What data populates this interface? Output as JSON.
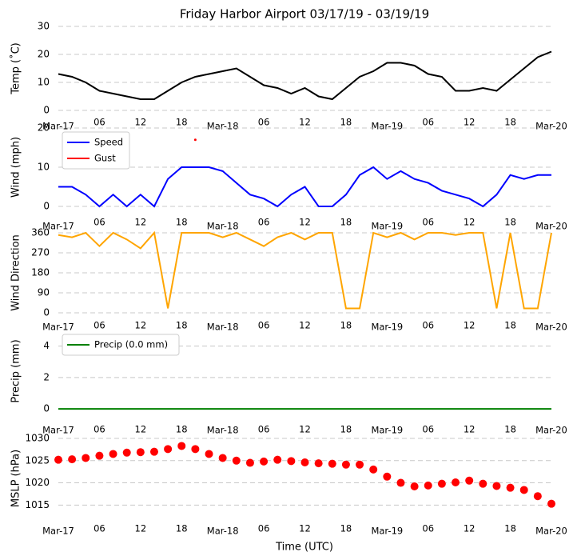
{
  "chart_data": [
    {
      "type": "line",
      "title": "Friday Harbor Airport 03/17/19 - 03/19/19",
      "ylabel": "Temp (˚C)",
      "x": [
        0,
        2,
        4,
        6,
        8,
        10,
        12,
        14,
        16,
        18,
        20,
        22,
        24,
        26,
        28,
        30,
        32,
        34,
        36,
        38,
        40,
        42,
        44,
        46,
        48,
        50,
        52,
        54,
        56,
        58,
        60,
        62,
        64,
        66,
        68,
        70,
        72
      ],
      "series": [
        {
          "name": "Temp",
          "color": "#000000",
          "values": [
            13,
            12,
            10,
            7,
            6,
            5,
            4,
            4,
            7,
            10,
            12,
            13,
            14,
            15,
            12,
            9,
            8,
            6,
            8,
            5,
            4,
            8,
            12,
            14,
            17,
            17,
            16,
            13,
            12,
            7,
            7,
            8,
            7,
            11,
            15,
            19,
            21
          ]
        }
      ],
      "xlim": [
        0,
        72
      ],
      "ylim": [
        0,
        30
      ],
      "yticks": [
        0,
        10,
        20,
        30
      ],
      "grid": true,
      "xticks": [
        {
          "value": 0,
          "label": "Mar-17"
        },
        {
          "value": 6,
          "label": "06"
        },
        {
          "value": 12,
          "label": "12"
        },
        {
          "value": 18,
          "label": "18"
        },
        {
          "value": 24,
          "label": "Mar-18"
        },
        {
          "value": 30,
          "label": "06"
        },
        {
          "value": 36,
          "label": "12"
        },
        {
          "value": 42,
          "label": "18"
        },
        {
          "value": 48,
          "label": "Mar-19"
        },
        {
          "value": 54,
          "label": "06"
        },
        {
          "value": 60,
          "label": "12"
        },
        {
          "value": 66,
          "label": "18"
        },
        {
          "value": 72,
          "label": "Mar-20"
        }
      ]
    },
    {
      "type": "line",
      "ylabel": "Wind (mph)",
      "legend": "upper left",
      "x": [
        0,
        2,
        4,
        6,
        8,
        10,
        12,
        14,
        16,
        18,
        20,
        22,
        24,
        26,
        28,
        30,
        32,
        34,
        36,
        38,
        40,
        42,
        44,
        46,
        48,
        50,
        52,
        54,
        56,
        58,
        60,
        62,
        64,
        66,
        68,
        70,
        72
      ],
      "series": [
        {
          "name": "Speed",
          "color": "#0000ff",
          "values": [
            5,
            5,
            3,
            0,
            3,
            0,
            3,
            0,
            7,
            10,
            10,
            10,
            9,
            6,
            3,
            2,
            0,
            3,
            5,
            0,
            0,
            3,
            8,
            10,
            7,
            9,
            7,
            6,
            4,
            3,
            2,
            0,
            3,
            8,
            7,
            8,
            8
          ]
        },
        {
          "name": "Gust",
          "color": "#ff0000",
          "values": [
            null,
            null,
            null,
            null,
            null,
            null,
            null,
            null,
            null,
            null,
            17,
            null,
            null,
            null,
            null,
            null,
            null,
            null,
            null,
            null,
            null,
            null,
            null,
            null,
            null,
            null,
            null,
            null,
            null,
            null,
            null,
            null,
            null,
            null,
            null,
            null,
            null
          ]
        }
      ],
      "xlim": [
        0,
        72
      ],
      "ylim": [
        0,
        20
      ],
      "yticks": [
        0,
        10,
        20
      ],
      "grid": true,
      "xticks": [
        {
          "value": 0,
          "label": "Mar-17"
        },
        {
          "value": 6,
          "label": "06"
        },
        {
          "value": 12,
          "label": "12"
        },
        {
          "value": 18,
          "label": "18"
        },
        {
          "value": 24,
          "label": "Mar-18"
        },
        {
          "value": 30,
          "label": "06"
        },
        {
          "value": 36,
          "label": "12"
        },
        {
          "value": 42,
          "label": "18"
        },
        {
          "value": 48,
          "label": "Mar-19"
        },
        {
          "value": 54,
          "label": "06"
        },
        {
          "value": 60,
          "label": "12"
        },
        {
          "value": 66,
          "label": "18"
        },
        {
          "value": 72,
          "label": "Mar-20"
        }
      ]
    },
    {
      "type": "line",
      "ylabel": "Wind Direction",
      "x": [
        0,
        2,
        4,
        6,
        8,
        10,
        12,
        14,
        16,
        18,
        20,
        22,
        24,
        26,
        28,
        30,
        32,
        34,
        36,
        38,
        40,
        42,
        44,
        46,
        48,
        50,
        52,
        54,
        56,
        58,
        60,
        62,
        64,
        66,
        68,
        70,
        72
      ],
      "series": [
        {
          "name": "Direction",
          "color": "#ffa500",
          "values": [
            350,
            340,
            360,
            300,
            360,
            330,
            290,
            360,
            20,
            360,
            360,
            360,
            340,
            360,
            330,
            300,
            340,
            360,
            330,
            360,
            360,
            20,
            20,
            360,
            340,
            360,
            330,
            360,
            360,
            350,
            360,
            360,
            20,
            360,
            20,
            20,
            360
          ]
        }
      ],
      "xlim": [
        0,
        72
      ],
      "ylim": [
        0,
        360
      ],
      "yticks": [
        0,
        90,
        180,
        270,
        360
      ],
      "grid": true,
      "xticks": [
        {
          "value": 0,
          "label": "Mar-17"
        },
        {
          "value": 6,
          "label": "06"
        },
        {
          "value": 12,
          "label": "12"
        },
        {
          "value": 18,
          "label": "18"
        },
        {
          "value": 24,
          "label": "Mar-18"
        },
        {
          "value": 30,
          "label": "06"
        },
        {
          "value": 36,
          "label": "12"
        },
        {
          "value": 42,
          "label": "18"
        },
        {
          "value": 48,
          "label": "Mar-19"
        },
        {
          "value": 54,
          "label": "06"
        },
        {
          "value": 60,
          "label": "12"
        },
        {
          "value": 66,
          "label": "18"
        },
        {
          "value": 72,
          "label": "Mar-20"
        }
      ]
    },
    {
      "type": "line",
      "ylabel": "Precip (mm)",
      "legend": "upper left",
      "x": [
        0,
        2,
        4,
        6,
        8,
        10,
        12,
        14,
        16,
        18,
        20,
        22,
        24,
        26,
        28,
        30,
        32,
        34,
        36,
        38,
        40,
        42,
        44,
        46,
        48,
        50,
        52,
        54,
        56,
        58,
        60,
        62,
        64,
        66,
        68,
        70,
        72
      ],
      "series": [
        {
          "name": "Precip (0.0 mm)",
          "color": "#008000",
          "values": [
            0,
            0,
            0,
            0,
            0,
            0,
            0,
            0,
            0,
            0,
            0,
            0,
            0,
            0,
            0,
            0,
            0,
            0,
            0,
            0,
            0,
            0,
            0,
            0,
            0,
            0,
            0,
            0,
            0,
            0,
            0,
            0,
            0,
            0,
            0,
            0,
            0
          ]
        }
      ],
      "xlim": [
        0,
        72
      ],
      "ylim": [
        -0.2,
        5
      ],
      "yticks": [
        0,
        2,
        4
      ],
      "grid": true,
      "xticks": [
        {
          "value": 0,
          "label": "Mar-17"
        },
        {
          "value": 6,
          "label": "06"
        },
        {
          "value": 12,
          "label": "12"
        },
        {
          "value": 18,
          "label": "18"
        },
        {
          "value": 24,
          "label": "Mar-18"
        },
        {
          "value": 30,
          "label": "06"
        },
        {
          "value": 36,
          "label": "12"
        },
        {
          "value": 42,
          "label": "18"
        },
        {
          "value": 48,
          "label": "Mar-19"
        },
        {
          "value": 54,
          "label": "06"
        },
        {
          "value": 60,
          "label": "12"
        },
        {
          "value": 66,
          "label": "18"
        },
        {
          "value": 72,
          "label": "Mar-20"
        }
      ]
    },
    {
      "type": "scatter",
      "ylabel": "MSLP (hPa)",
      "xlabel": "Time (UTC)",
      "x": [
        0,
        2,
        4,
        6,
        8,
        10,
        12,
        14,
        16,
        18,
        20,
        22,
        24,
        26,
        28,
        30,
        32,
        34,
        36,
        38,
        40,
        42,
        44,
        46,
        48,
        50,
        52,
        54,
        56,
        58,
        60,
        62,
        64,
        66,
        68,
        70,
        72
      ],
      "series": [
        {
          "name": "MSLP",
          "color": "#ff0000",
          "values": [
            1025.2,
            1025.3,
            1025.6,
            1026.1,
            1026.5,
            1026.8,
            1026.9,
            1027.0,
            1027.6,
            1028.3,
            1027.6,
            1026.5,
            1025.6,
            1025.0,
            1024.5,
            1024.8,
            1025.2,
            1024.9,
            1024.6,
            1024.4,
            1024.3,
            1024.1,
            1024.1,
            1023.0,
            1021.4,
            1020.0,
            1019.2,
            1019.4,
            1019.8,
            1020.1,
            1020.5,
            1019.8,
            1019.3,
            1018.9,
            1018.4,
            1017.0,
            1015.3
          ]
        }
      ],
      "xlim": [
        0,
        72
      ],
      "ylim": [
        1012,
        1030
      ],
      "yticks": [
        1015,
        1020,
        1025,
        1030
      ],
      "grid": true,
      "xticks": [
        {
          "value": 0,
          "label": "Mar-17"
        },
        {
          "value": 6,
          "label": "06"
        },
        {
          "value": 12,
          "label": "12"
        },
        {
          "value": 18,
          "label": "18"
        },
        {
          "value": 24,
          "label": "Mar-18"
        },
        {
          "value": 30,
          "label": "06"
        },
        {
          "value": 36,
          "label": "12"
        },
        {
          "value": 42,
          "label": "18"
        },
        {
          "value": 48,
          "label": "Mar-19"
        },
        {
          "value": 54,
          "label": "06"
        },
        {
          "value": 60,
          "label": "12"
        },
        {
          "value": 66,
          "label": "18"
        },
        {
          "value": 72,
          "label": "Mar-20"
        }
      ]
    }
  ]
}
